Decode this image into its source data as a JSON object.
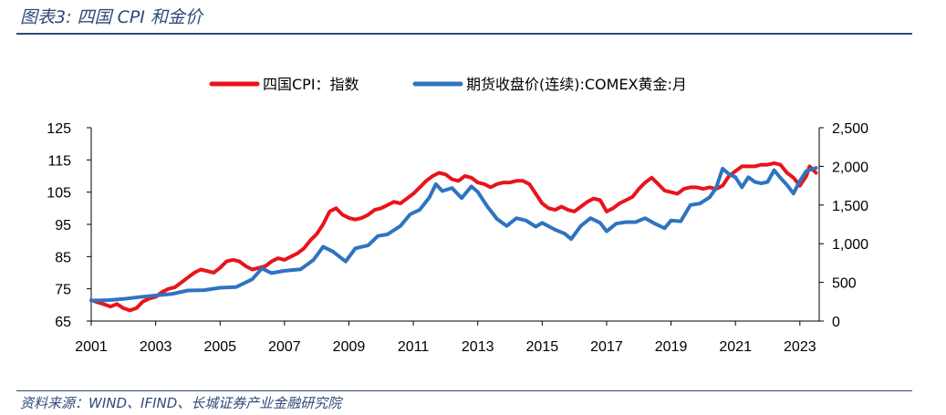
{
  "header": {
    "title": "图表3:  四国 CPI 和金价"
  },
  "footer": {
    "source": "资料来源：WIND、IFIND、长城证券产业金融研究院"
  },
  "colors": {
    "cpi": "#e8141b",
    "gold": "#2e74c0",
    "accent": "#2f4a7a"
  },
  "chart_data": {
    "type": "line",
    "legend": [
      "四国CPI：指数",
      "期货收盘价(连续):COMEX黄金:月"
    ],
    "legend_position": "top",
    "grid": false,
    "x_ticks": [
      "2001",
      "2003",
      "2005",
      "2007",
      "2009",
      "2011",
      "2013",
      "2015",
      "2017",
      "2019",
      "2021",
      "2023"
    ],
    "y_left": {
      "min": 65,
      "max": 125,
      "ticks": [
        "65",
        "75",
        "85",
        "95",
        "105",
        "115",
        "125"
      ]
    },
    "y_right": {
      "min": 0,
      "max": 2500,
      "ticks": [
        "0",
        "500",
        "1,000",
        "1,500",
        "2,000",
        "2,500"
      ]
    },
    "x_range": [
      2001,
      2023.6
    ],
    "series": [
      {
        "name": "四国CPI：指数",
        "axis": "left",
        "points": [
          [
            2001.0,
            71.5
          ],
          [
            2001.2,
            70.8
          ],
          [
            2001.4,
            70.2
          ],
          [
            2001.6,
            69.5
          ],
          [
            2001.8,
            70.3
          ],
          [
            2002.0,
            69.0
          ],
          [
            2002.2,
            68.3
          ],
          [
            2002.4,
            69.0
          ],
          [
            2002.6,
            71.0
          ],
          [
            2002.8,
            72.0
          ],
          [
            2003.0,
            72.5
          ],
          [
            2003.2,
            74.0
          ],
          [
            2003.4,
            75.0
          ],
          [
            2003.6,
            75.5
          ],
          [
            2003.8,
            77.0
          ],
          [
            2004.0,
            78.5
          ],
          [
            2004.2,
            80.0
          ],
          [
            2004.4,
            81.0
          ],
          [
            2004.6,
            80.5
          ],
          [
            2004.8,
            80.0
          ],
          [
            2005.0,
            81.5
          ],
          [
            2005.2,
            83.5
          ],
          [
            2005.4,
            84.0
          ],
          [
            2005.6,
            83.5
          ],
          [
            2005.8,
            82.0
          ],
          [
            2006.0,
            81.0
          ],
          [
            2006.2,
            81.5
          ],
          [
            2006.4,
            82.0
          ],
          [
            2006.6,
            83.5
          ],
          [
            2006.8,
            84.5
          ],
          [
            2007.0,
            84.0
          ],
          [
            2007.2,
            85.0
          ],
          [
            2007.4,
            86.0
          ],
          [
            2007.6,
            87.5
          ],
          [
            2007.8,
            90.0
          ],
          [
            2008.0,
            92.0
          ],
          [
            2008.2,
            95.0
          ],
          [
            2008.4,
            99.0
          ],
          [
            2008.6,
            100.0
          ],
          [
            2008.8,
            98.0
          ],
          [
            2009.0,
            97.0
          ],
          [
            2009.2,
            96.5
          ],
          [
            2009.4,
            97.0
          ],
          [
            2009.6,
            98.0
          ],
          [
            2009.8,
            99.5
          ],
          [
            2010.0,
            100.0
          ],
          [
            2010.2,
            101.0
          ],
          [
            2010.4,
            102.0
          ],
          [
            2010.6,
            101.5
          ],
          [
            2010.8,
            103.0
          ],
          [
            2011.0,
            104.5
          ],
          [
            2011.2,
            106.5
          ],
          [
            2011.4,
            108.5
          ],
          [
            2011.6,
            110.0
          ],
          [
            2011.8,
            111.0
          ],
          [
            2012.0,
            110.5
          ],
          [
            2012.2,
            109.0
          ],
          [
            2012.4,
            108.5
          ],
          [
            2012.6,
            110.0
          ],
          [
            2012.8,
            109.5
          ],
          [
            2013.0,
            108.0
          ],
          [
            2013.2,
            107.5
          ],
          [
            2013.4,
            106.5
          ],
          [
            2013.6,
            107.5
          ],
          [
            2013.8,
            108.0
          ],
          [
            2014.0,
            108.0
          ],
          [
            2014.2,
            108.5
          ],
          [
            2014.4,
            108.5
          ],
          [
            2014.6,
            107.5
          ],
          [
            2014.8,
            104.5
          ],
          [
            2015.0,
            101.5
          ],
          [
            2015.2,
            100.0
          ],
          [
            2015.4,
            99.5
          ],
          [
            2015.6,
            100.5
          ],
          [
            2015.8,
            99.5
          ],
          [
            2016.0,
            99.0
          ],
          [
            2016.2,
            100.5
          ],
          [
            2016.4,
            102.0
          ],
          [
            2016.6,
            103.0
          ],
          [
            2016.8,
            102.5
          ],
          [
            2017.0,
            99.0
          ],
          [
            2017.2,
            100.0
          ],
          [
            2017.4,
            101.5
          ],
          [
            2017.6,
            102.5
          ],
          [
            2017.8,
            103.5
          ],
          [
            2018.0,
            106.0
          ],
          [
            2018.2,
            108.0
          ],
          [
            2018.4,
            109.5
          ],
          [
            2018.6,
            107.5
          ],
          [
            2018.8,
            105.5
          ],
          [
            2019.0,
            105.0
          ],
          [
            2019.2,
            104.5
          ],
          [
            2019.4,
            106.0
          ],
          [
            2019.6,
            106.5
          ],
          [
            2019.8,
            106.5
          ],
          [
            2020.0,
            106.0
          ],
          [
            2020.2,
            106.5
          ],
          [
            2020.4,
            106.0
          ],
          [
            2020.6,
            107.0
          ],
          [
            2020.8,
            110.0
          ],
          [
            2021.0,
            111.5
          ],
          [
            2021.2,
            113.0
          ],
          [
            2021.4,
            113.0
          ],
          [
            2021.6,
            113.0
          ],
          [
            2021.8,
            113.5
          ],
          [
            2022.0,
            113.5
          ],
          [
            2022.2,
            114.0
          ],
          [
            2022.4,
            113.5
          ],
          [
            2022.6,
            111.0
          ],
          [
            2022.8,
            109.5
          ],
          [
            2023.0,
            107.0
          ],
          [
            2023.2,
            110.0
          ],
          [
            2023.3,
            113.0
          ],
          [
            2023.5,
            111.0
          ]
        ]
      },
      {
        "name": "期货收盘价(连续):COMEX黄金:月",
        "axis": "right",
        "points": [
          [
            2001.0,
            265
          ],
          [
            2001.5,
            270
          ],
          [
            2002.0,
            285
          ],
          [
            2002.5,
            310
          ],
          [
            2003.0,
            330
          ],
          [
            2003.5,
            350
          ],
          [
            2004.0,
            395
          ],
          [
            2004.5,
            400
          ],
          [
            2005.0,
            430
          ],
          [
            2005.5,
            440
          ],
          [
            2006.0,
            540
          ],
          [
            2006.3,
            680
          ],
          [
            2006.6,
            620
          ],
          [
            2007.0,
            650
          ],
          [
            2007.5,
            670
          ],
          [
            2007.9,
            790
          ],
          [
            2008.2,
            960
          ],
          [
            2008.5,
            900
          ],
          [
            2008.9,
            770
          ],
          [
            2009.2,
            940
          ],
          [
            2009.6,
            980
          ],
          [
            2009.9,
            1100
          ],
          [
            2010.2,
            1120
          ],
          [
            2010.6,
            1230
          ],
          [
            2010.9,
            1380
          ],
          [
            2011.2,
            1440
          ],
          [
            2011.5,
            1600
          ],
          [
            2011.7,
            1770
          ],
          [
            2011.9,
            1680
          ],
          [
            2012.2,
            1720
          ],
          [
            2012.5,
            1590
          ],
          [
            2012.8,
            1740
          ],
          [
            2013.0,
            1670
          ],
          [
            2013.3,
            1480
          ],
          [
            2013.6,
            1320
          ],
          [
            2013.9,
            1230
          ],
          [
            2014.2,
            1330
          ],
          [
            2014.5,
            1300
          ],
          [
            2014.8,
            1220
          ],
          [
            2015.0,
            1270
          ],
          [
            2015.4,
            1180
          ],
          [
            2015.7,
            1130
          ],
          [
            2015.9,
            1060
          ],
          [
            2016.2,
            1230
          ],
          [
            2016.5,
            1330
          ],
          [
            2016.8,
            1270
          ],
          [
            2017.0,
            1160
          ],
          [
            2017.3,
            1260
          ],
          [
            2017.6,
            1280
          ],
          [
            2017.9,
            1280
          ],
          [
            2018.2,
            1330
          ],
          [
            2018.5,
            1260
          ],
          [
            2018.8,
            1200
          ],
          [
            2019.0,
            1300
          ],
          [
            2019.3,
            1290
          ],
          [
            2019.6,
            1500
          ],
          [
            2019.9,
            1520
          ],
          [
            2020.2,
            1600
          ],
          [
            2020.4,
            1720
          ],
          [
            2020.6,
            1970
          ],
          [
            2020.8,
            1900
          ],
          [
            2021.0,
            1860
          ],
          [
            2021.2,
            1730
          ],
          [
            2021.4,
            1860
          ],
          [
            2021.6,
            1800
          ],
          [
            2021.8,
            1780
          ],
          [
            2022.0,
            1800
          ],
          [
            2022.2,
            1950
          ],
          [
            2022.4,
            1850
          ],
          [
            2022.6,
            1760
          ],
          [
            2022.8,
            1650
          ],
          [
            2023.0,
            1810
          ],
          [
            2023.2,
            1940
          ],
          [
            2023.5,
            1980
          ]
        ]
      }
    ]
  }
}
